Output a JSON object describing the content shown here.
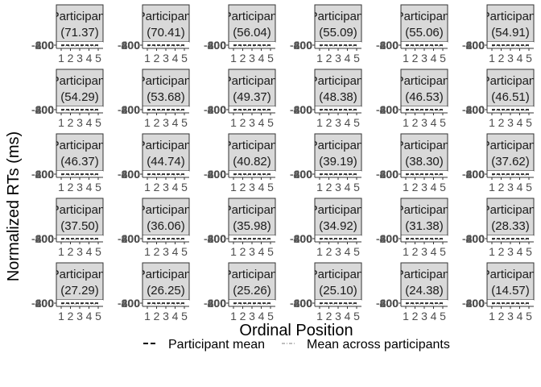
{
  "chart_data": {
    "type": "line",
    "xlabel": "Ordinal Position",
    "ylabel": "Normalized RTs (ms)",
    "x_ticks": [
      "1",
      "2",
      "3",
      "4",
      "5"
    ],
    "y_tick_overlap": [
      "-400",
      "-200",
      "0",
      "200",
      "400",
      "600",
      "800"
    ],
    "strip_prefix": "Participant",
    "panels": [
      {
        "strip": "(71.37)"
      },
      {
        "strip": "(70.41)"
      },
      {
        "strip": "(56.04)"
      },
      {
        "strip": "(55.09)"
      },
      {
        "strip": "(55.06)"
      },
      {
        "strip": "(54.91)"
      },
      {
        "strip": "(54.29)"
      },
      {
        "strip": "(53.68)"
      },
      {
        "strip": "(49.37)"
      },
      {
        "strip": "(48.38)"
      },
      {
        "strip": "(46.53)"
      },
      {
        "strip": "(46.51)"
      },
      {
        "strip": "(46.37)"
      },
      {
        "strip": "(44.74)"
      },
      {
        "strip": "(40.82)"
      },
      {
        "strip": "(39.19)"
      },
      {
        "strip": "(38.30)"
      },
      {
        "strip": "(37.62)"
      },
      {
        "strip": "(37.50)"
      },
      {
        "strip": "(36.06)"
      },
      {
        "strip": "(35.98)"
      },
      {
        "strip": "(34.92)"
      },
      {
        "strip": "(31.38)"
      },
      {
        "strip": "(28.33)"
      },
      {
        "strip": "(27.29)"
      },
      {
        "strip": "(26.25)"
      },
      {
        "strip": "(25.26)"
      },
      {
        "strip": "(25.10)"
      },
      {
        "strip": "(24.38)"
      },
      {
        "strip": "(14.57)"
      }
    ],
    "legend": {
      "position": "bottom",
      "items": [
        {
          "label": "Participant mean",
          "style": "dashed-black"
        },
        {
          "label": "Mean across participants",
          "style": "dotdash-grey"
        }
      ]
    },
    "colors": {
      "strip_fill": "#d9d9d9",
      "strip_border": "#333333",
      "participant_line": "#000000",
      "mean_line": "#aaaaaa"
    },
    "grid": false
  }
}
